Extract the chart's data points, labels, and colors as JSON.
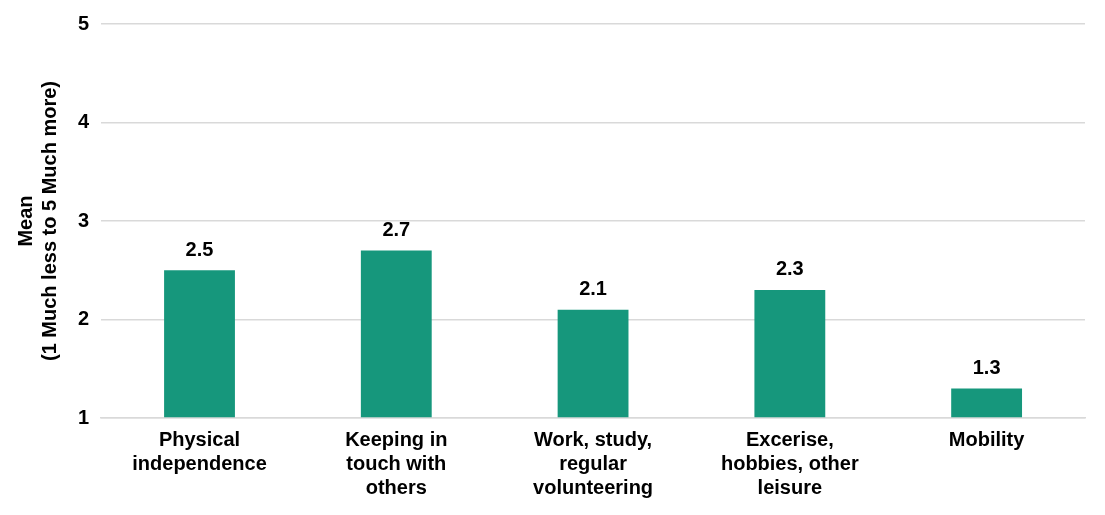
{
  "chart_data": {
    "type": "bar",
    "ylabel": "Mean\n(1 Much less to 5 Much more)",
    "categories": [
      "Physical independence",
      "Keeping in touch with others",
      "Work, study, regular volunteering",
      "Excerise, hobbies, other leisure",
      "Mobility"
    ],
    "values": [
      2.5,
      2.7,
      2.1,
      2.3,
      1.3
    ],
    "color": "#16977c",
    "ylim": [
      1,
      5
    ],
    "yticks": [
      1,
      2,
      3,
      4,
      5
    ],
    "grid": "y",
    "data_labels": true,
    "legend": false
  }
}
